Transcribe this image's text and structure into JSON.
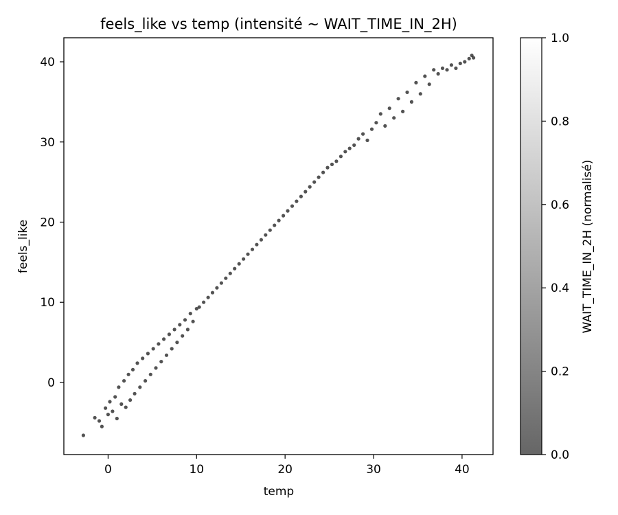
{
  "chart_data": {
    "type": "scatter",
    "title": "feels_like vs temp (intensité ~ WAIT_TIME_IN_2H)",
    "xlabel": "temp",
    "ylabel": "feels_like",
    "xlim": [
      -5,
      43.5
    ],
    "ylim": [
      -9,
      43
    ],
    "xticks": [
      0,
      10,
      20,
      30,
      40
    ],
    "yticks": [
      0,
      10,
      20,
      30,
      40
    ],
    "grid": false,
    "colorbar": {
      "label": "WAIT_TIME_IN_2H (normalisé)",
      "range": [
        0,
        1
      ],
      "ticks": [
        "0.0",
        "0.2",
        "0.4",
        "0.6",
        "0.8",
        "1.0"
      ],
      "colormap": "gray",
      "alpha": 0.6
    },
    "point_color": "#1a1a1a",
    "series": [
      {
        "points": [
          [
            -2.8,
            -6.6
          ],
          [
            -1.5,
            -4.4
          ],
          [
            -1.0,
            -4.8
          ],
          [
            -0.7,
            -5.5
          ],
          [
            -0.3,
            -3.2
          ],
          [
            0.0,
            -4.0
          ],
          [
            0.2,
            -2.4
          ],
          [
            0.5,
            -3.6
          ],
          [
            0.8,
            -1.8
          ],
          [
            1.0,
            -4.5
          ],
          [
            1.2,
            -0.6
          ],
          [
            1.5,
            -2.7
          ],
          [
            1.8,
            0.2
          ],
          [
            2.0,
            -3.1
          ],
          [
            2.3,
            1.0
          ],
          [
            2.5,
            -2.2
          ],
          [
            2.8,
            1.6
          ],
          [
            3.0,
            -1.4
          ],
          [
            3.3,
            2.4
          ],
          [
            3.6,
            -0.6
          ],
          [
            3.9,
            3.0
          ],
          [
            4.2,
            0.2
          ],
          [
            4.5,
            3.6
          ],
          [
            4.8,
            1.0
          ],
          [
            5.1,
            4.2
          ],
          [
            5.4,
            1.8
          ],
          [
            5.7,
            4.8
          ],
          [
            6.0,
            2.6
          ],
          [
            6.3,
            5.4
          ],
          [
            6.6,
            3.4
          ],
          [
            6.9,
            6.0
          ],
          [
            7.2,
            4.2
          ],
          [
            7.5,
            6.6
          ],
          [
            7.8,
            5.0
          ],
          [
            8.1,
            7.2
          ],
          [
            8.4,
            5.8
          ],
          [
            8.7,
            7.8
          ],
          [
            9.0,
            6.6
          ],
          [
            9.3,
            8.6
          ],
          [
            9.6,
            7.6
          ],
          [
            10.0,
            9.2
          ],
          [
            10.3,
            9.4
          ],
          [
            10.8,
            10.0
          ],
          [
            11.3,
            10.6
          ],
          [
            11.8,
            11.2
          ],
          [
            12.3,
            11.8
          ],
          [
            12.8,
            12.4
          ],
          [
            13.3,
            13.0
          ],
          [
            13.8,
            13.6
          ],
          [
            14.3,
            14.2
          ],
          [
            14.8,
            14.8
          ],
          [
            15.3,
            15.4
          ],
          [
            15.8,
            16.0
          ],
          [
            16.3,
            16.6
          ],
          [
            16.8,
            17.2
          ],
          [
            17.3,
            17.8
          ],
          [
            17.8,
            18.4
          ],
          [
            18.3,
            19.0
          ],
          [
            18.8,
            19.6
          ],
          [
            19.3,
            20.2
          ],
          [
            19.8,
            20.8
          ],
          [
            20.3,
            21.4
          ],
          [
            20.8,
            22.0
          ],
          [
            21.3,
            22.6
          ],
          [
            21.8,
            23.2
          ],
          [
            22.3,
            23.8
          ],
          [
            22.8,
            24.4
          ],
          [
            23.3,
            25.0
          ],
          [
            23.8,
            25.6
          ],
          [
            24.3,
            26.2
          ],
          [
            24.8,
            26.8
          ],
          [
            25.3,
            27.2
          ],
          [
            25.8,
            27.6
          ],
          [
            26.3,
            28.2
          ],
          [
            26.8,
            28.8
          ],
          [
            27.3,
            29.2
          ],
          [
            27.8,
            29.6
          ],
          [
            28.3,
            30.4
          ],
          [
            28.8,
            31.0
          ],
          [
            29.3,
            30.2
          ],
          [
            29.8,
            31.6
          ],
          [
            30.3,
            32.4
          ],
          [
            30.8,
            33.5
          ],
          [
            31.3,
            32.0
          ],
          [
            31.8,
            34.2
          ],
          [
            32.3,
            33.0
          ],
          [
            32.8,
            35.4
          ],
          [
            33.3,
            33.8
          ],
          [
            33.8,
            36.2
          ],
          [
            34.3,
            35.0
          ],
          [
            34.8,
            37.4
          ],
          [
            35.3,
            36.0
          ],
          [
            35.8,
            38.2
          ],
          [
            36.3,
            37.2
          ],
          [
            36.8,
            39.0
          ],
          [
            37.3,
            38.5
          ],
          [
            37.8,
            39.2
          ],
          [
            38.3,
            39.0
          ],
          [
            38.8,
            39.6
          ],
          [
            39.3,
            39.2
          ],
          [
            39.8,
            39.8
          ],
          [
            40.3,
            40.0
          ],
          [
            40.8,
            40.4
          ],
          [
            41.1,
            40.8
          ],
          [
            41.3,
            40.5
          ]
        ]
      }
    ]
  }
}
